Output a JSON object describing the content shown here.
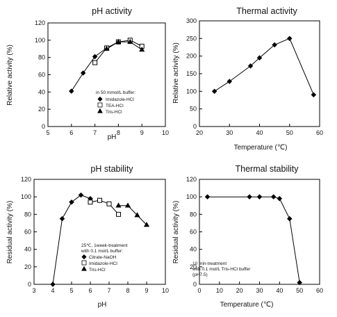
{
  "figure": {
    "panels": [
      {
        "title": "pH activity",
        "xlabel": "pH",
        "ylabel": "Relative activity (%)"
      },
      {
        "title": "Thermal activity",
        "xlabel": "Temperature (℃)",
        "ylabel": "Relative activity (%)"
      },
      {
        "title": "pH stability",
        "xlabel": "pH",
        "ylabel": "Residual activity (%)"
      },
      {
        "title": "Thermal stability",
        "xlabel": "Temperature (℃)",
        "ylabel": "Residual activity (%)"
      }
    ]
  },
  "chart_data": [
    {
      "type": "line",
      "title": "pH activity",
      "xlabel": "pH",
      "ylabel": "Relative activity (%)",
      "xlim": [
        5,
        10
      ],
      "ylim": [
        0,
        120
      ],
      "xticks": [
        5,
        6,
        7,
        8,
        9,
        10
      ],
      "yticks": [
        0,
        20,
        40,
        60,
        80,
        100,
        120
      ],
      "grid": false,
      "legend": {
        "position": "bottom-right",
        "header": "in 50 mmol/L buffer:"
      },
      "series": [
        {
          "name": "Imidazole-HCl",
          "marker": "diamond",
          "x": [
            6,
            6.5,
            7,
            7.5,
            8
          ],
          "y": [
            41,
            62,
            81,
            91,
            98
          ]
        },
        {
          "name": "TEA-HCl",
          "marker": "square-open",
          "x": [
            7,
            7.5,
            8,
            8.5,
            9
          ],
          "y": [
            74,
            91,
            98,
            100,
            93
          ]
        },
        {
          "name": "Tris-HCl",
          "marker": "triangle",
          "x": [
            7.5,
            8,
            8.5,
            9
          ],
          "y": [
            90,
            98,
            98,
            89
          ]
        }
      ]
    },
    {
      "type": "line",
      "title": "Thermal activity",
      "xlabel": "Temperature (℃)",
      "ylabel": "Relative activity (%)",
      "xlim": [
        20,
        60
      ],
      "ylim": [
        0,
        300
      ],
      "xticks": [
        20,
        30,
        40,
        50,
        60
      ],
      "yticks": [
        0,
        50,
        100,
        150,
        200,
        250,
        300
      ],
      "grid": false,
      "series": [
        {
          "marker": "diamond",
          "x": [
            25,
            30,
            37,
            40,
            45,
            50,
            58
          ],
          "y": [
            100,
            128,
            172,
            195,
            232,
            250,
            90
          ]
        }
      ]
    },
    {
      "type": "line",
      "title": "pH stability",
      "xlabel": "pH",
      "ylabel": "Residual activity (%)",
      "xlim": [
        3,
        10
      ],
      "ylim": [
        0,
        120
      ],
      "xticks": [
        3,
        4,
        5,
        6,
        7,
        8,
        9,
        10
      ],
      "yticks": [
        0,
        20,
        40,
        60,
        80,
        100,
        120
      ],
      "grid": false,
      "legend": {
        "position": "bottom-right",
        "header": "25℃, 1week-treatment",
        "header2": "with 0.1 mol/L buffer:"
      },
      "series": [
        {
          "name": "Citrate-NaOH",
          "marker": "diamond",
          "x": [
            4,
            4.5,
            5,
            5.5,
            6
          ],
          "y": [
            0,
            75,
            94,
            102,
            98
          ]
        },
        {
          "name": "Imidazole-HCl",
          "marker": "square-open",
          "x": [
            6,
            6.5,
            7,
            7.5
          ],
          "y": [
            94,
            96,
            92,
            80
          ]
        },
        {
          "name": "Tris-HCl",
          "marker": "triangle",
          "x": [
            7.5,
            8,
            8.5,
            9
          ],
          "y": [
            90,
            90,
            79,
            68
          ]
        }
      ]
    },
    {
      "type": "line",
      "title": "Thermal stability",
      "xlabel": "Temperature (℃)",
      "ylabel": "Residual activity (%)",
      "xlim": [
        0,
        60
      ],
      "ylim": [
        0,
        120
      ],
      "xticks": [
        0,
        10,
        20,
        30,
        40,
        50,
        60
      ],
      "yticks": [
        0,
        20,
        40,
        60,
        80,
        100,
        120
      ],
      "grid": false,
      "annotation": [
        "10 min-treatment",
        "with 0.1 mol/L Tris-HCl buffer",
        "(pH7.5)"
      ],
      "series": [
        {
          "marker": "diamond",
          "x": [
            4,
            25,
            30,
            37,
            40,
            45,
            50
          ],
          "y": [
            100,
            100,
            100,
            100,
            98,
            75,
            2
          ]
        }
      ]
    }
  ]
}
